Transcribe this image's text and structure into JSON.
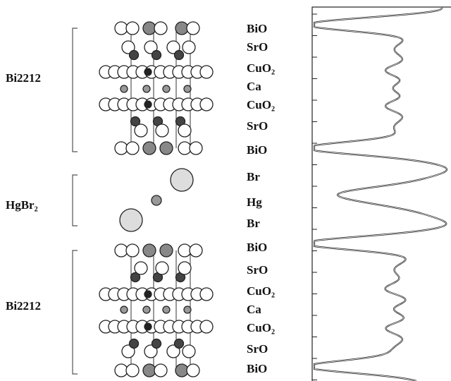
{
  "structure": {
    "groups": [
      "Bi2212",
      "HgBr₂",
      "Bi2212"
    ],
    "layers": [
      "BiO",
      "SrO",
      "CuO₂",
      "Ca",
      "CuO₂",
      "SrO",
      "BiO",
      "Br",
      "Hg",
      "Br",
      "BiO",
      "SrO",
      "CuO₂",
      "Ca",
      "CuO₂",
      "SrO",
      "BiO"
    ]
  }
}
